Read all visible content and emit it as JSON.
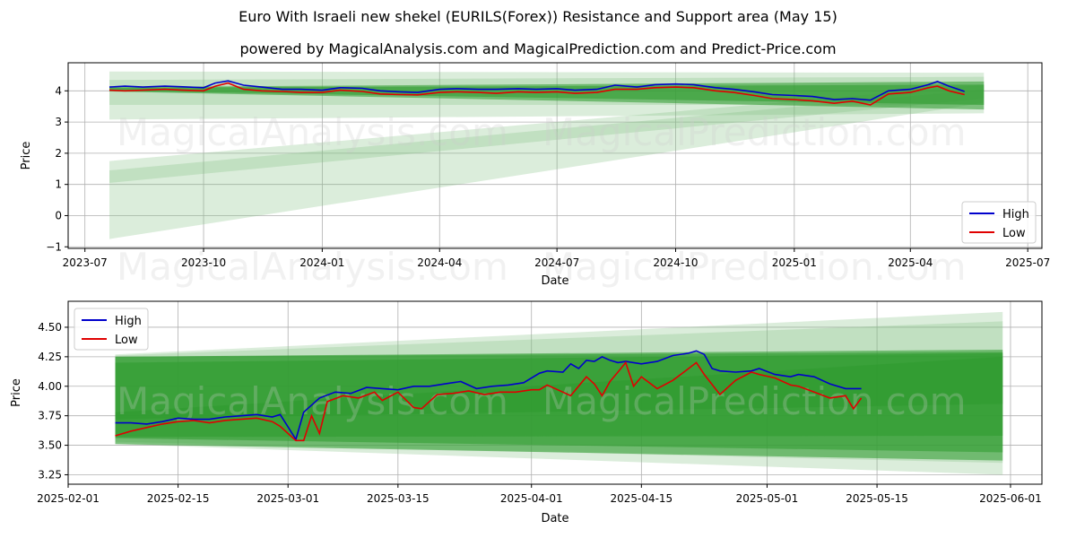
{
  "title": "Euro With Israeli new shekel (EURILS(Forex)) Resistance and Support area (May 15)",
  "subtitle": "powered by MagicalAnalysis.com and MagicalPrediction.com and Predict-Price.com",
  "watermarks": [
    "MagicalAnalysis.com",
    "MagicalPrediction.com"
  ],
  "colors": {
    "high": "#0000cc",
    "low": "#e00000",
    "band_dark": "#2e9a2e",
    "band_light": "#7fbf7f",
    "grid": "#b0b0b0"
  },
  "chart_data": [
    {
      "type": "line",
      "xlabel": "Date",
      "ylabel": "Price",
      "xlim": [
        "2023-06-18",
        "2025-07-12"
      ],
      "ylim": [
        -1.05,
        4.9
      ],
      "xticks": [
        "2023-07",
        "2023-10",
        "2024-01",
        "2024-04",
        "2024-07",
        "2024-10",
        "2025-01",
        "2025-04",
        "2025-07"
      ],
      "yticks": [
        -1,
        0,
        1,
        2,
        3,
        4
      ],
      "legend": [
        "High",
        "Low"
      ],
      "legend_position": "lower-right",
      "grid": true,
      "bands": [
        {
          "x": [
            "2023-07-20",
            "2025-05-28"
          ],
          "top": [
            4.62,
            4.58
          ],
          "bottom": [
            3.08,
            3.28
          ],
          "shade": "light"
        },
        {
          "x": [
            "2023-07-20",
            "2025-05-28"
          ],
          "top": [
            4.35,
            4.45
          ],
          "bottom": [
            3.55,
            3.55
          ],
          "shade": "light"
        },
        {
          "x": [
            "2023-07-20",
            "2025-05-28"
          ],
          "top": [
            1.75,
            4.2
          ],
          "bottom": [
            -0.75,
            3.62
          ],
          "shade": "light"
        },
        {
          "x": [
            "2023-07-20",
            "2025-05-28"
          ],
          "top": [
            1.45,
            4.05
          ],
          "bottom": [
            1.05,
            3.75
          ],
          "shade": "light"
        },
        {
          "x": [
            "2023-07-20",
            "2025-05-28"
          ],
          "top": [
            4.12,
            4.3
          ],
          "bottom": [
            3.98,
            3.4
          ],
          "shade": "dark"
        },
        {
          "x": [
            "2023-07-20",
            "2025-05-28"
          ],
          "top": [
            4.1,
            4.2
          ],
          "bottom": [
            4.0,
            3.55
          ],
          "shade": "dark"
        }
      ],
      "series": [
        {
          "name": "High",
          "x": [
            "2023-07-20",
            "2023-08-01",
            "2023-08-15",
            "2023-09-01",
            "2023-09-15",
            "2023-10-01",
            "2023-10-10",
            "2023-10-20",
            "2023-11-01",
            "2023-11-15",
            "2023-12-01",
            "2023-12-15",
            "2024-01-01",
            "2024-01-15",
            "2024-02-01",
            "2024-02-15",
            "2024-03-01",
            "2024-03-15",
            "2024-04-01",
            "2024-04-15",
            "2024-05-01",
            "2024-05-15",
            "2024-06-01",
            "2024-06-15",
            "2024-07-01",
            "2024-07-15",
            "2024-08-01",
            "2024-08-15",
            "2024-09-01",
            "2024-09-15",
            "2024-10-01",
            "2024-10-15",
            "2024-11-01",
            "2024-11-15",
            "2024-12-01",
            "2024-12-15",
            "2025-01-01",
            "2025-01-15",
            "2025-02-01",
            "2025-02-15",
            "2025-03-01",
            "2025-03-15",
            "2025-04-01",
            "2025-04-15",
            "2025-04-22",
            "2025-05-01",
            "2025-05-13"
          ],
          "values": [
            4.12,
            4.15,
            4.12,
            4.15,
            4.13,
            4.1,
            4.25,
            4.32,
            4.18,
            4.12,
            4.05,
            4.05,
            4.02,
            4.1,
            4.08,
            4.0,
            3.97,
            3.95,
            4.05,
            4.07,
            4.05,
            4.05,
            4.07,
            4.05,
            4.07,
            4.02,
            4.05,
            4.18,
            4.12,
            4.2,
            4.22,
            4.2,
            4.1,
            4.05,
            3.97,
            3.88,
            3.85,
            3.82,
            3.72,
            3.75,
            3.7,
            4.0,
            4.05,
            4.2,
            4.3,
            4.15,
            3.98
          ]
        },
        {
          "name": "Low",
          "x": [
            "2023-07-20",
            "2023-08-01",
            "2023-08-15",
            "2023-09-01",
            "2023-09-15",
            "2023-10-01",
            "2023-10-10",
            "2023-10-20",
            "2023-11-01",
            "2023-11-15",
            "2023-12-01",
            "2023-12-15",
            "2024-01-01",
            "2024-01-15",
            "2024-02-01",
            "2024-02-15",
            "2024-03-01",
            "2024-03-15",
            "2024-04-01",
            "2024-04-15",
            "2024-05-01",
            "2024-05-15",
            "2024-06-01",
            "2024-06-15",
            "2024-07-01",
            "2024-07-15",
            "2024-08-01",
            "2024-08-15",
            "2024-09-01",
            "2024-09-15",
            "2024-10-01",
            "2024-10-15",
            "2024-11-01",
            "2024-11-15",
            "2024-12-01",
            "2024-12-15",
            "2025-01-01",
            "2025-01-15",
            "2025-02-01",
            "2025-02-15",
            "2025-03-01",
            "2025-03-15",
            "2025-04-01",
            "2025-04-15",
            "2025-04-22",
            "2025-05-01",
            "2025-05-13"
          ],
          "values": [
            4.02,
            4.0,
            4.02,
            4.05,
            4.02,
            4.0,
            4.15,
            4.25,
            4.05,
            4.0,
            3.98,
            3.95,
            3.95,
            4.02,
            3.98,
            3.9,
            3.88,
            3.87,
            3.95,
            3.97,
            3.95,
            3.92,
            3.97,
            3.95,
            3.97,
            3.92,
            3.95,
            4.05,
            4.05,
            4.1,
            4.12,
            4.1,
            4.0,
            3.95,
            3.85,
            3.75,
            3.72,
            3.68,
            3.6,
            3.67,
            3.55,
            3.9,
            3.95,
            4.1,
            4.15,
            4.0,
            3.88
          ]
        }
      ]
    },
    {
      "type": "line",
      "xlabel": "Date",
      "ylabel": "Price",
      "xlim": [
        "2025-02-01",
        "2025-06-05"
      ],
      "ylim": [
        3.17,
        4.72
      ],
      "xticks": [
        "2025-02-01",
        "2025-02-15",
        "2025-03-01",
        "2025-03-15",
        "2025-04-01",
        "2025-04-15",
        "2025-05-01",
        "2025-05-15",
        "2025-06-01"
      ],
      "yticks": [
        3.25,
        3.5,
        3.75,
        4.0,
        4.25,
        4.5
      ],
      "legend": [
        "High",
        "Low"
      ],
      "legend_position": "upper-left",
      "grid": true,
      "bands": [
        {
          "x": [
            "2025-02-07",
            "2025-05-31"
          ],
          "top": [
            4.27,
            4.63
          ],
          "bottom": [
            3.51,
            3.25
          ],
          "shade": "light"
        },
        {
          "x": [
            "2025-02-07",
            "2025-05-31"
          ],
          "top": [
            4.26,
            4.55
          ],
          "bottom": [
            3.53,
            3.35
          ],
          "shade": "light"
        },
        {
          "x": [
            "2025-02-07",
            "2025-05-31"
          ],
          "top": [
            4.25,
            4.31
          ],
          "bottom": [
            3.51,
            3.37
          ],
          "shade": "dark"
        },
        {
          "x": [
            "2025-02-07",
            "2025-05-31"
          ],
          "top": [
            4.25,
            4.29
          ],
          "bottom": [
            3.56,
            3.44
          ],
          "shade": "dark"
        },
        {
          "x": [
            "2025-02-07",
            "2025-05-31"
          ],
          "top": [
            4.2,
            4.28
          ],
          "bottom": [
            3.57,
            3.58
          ],
          "shade": "dark"
        },
        {
          "x": [
            "2025-02-07",
            "2025-05-31"
          ],
          "top": [
            3.78,
            4.25
          ],
          "bottom": [
            3.72,
            3.85
          ],
          "shade": "dark"
        }
      ],
      "series": [
        {
          "name": "High",
          "x": [
            "2025-02-07",
            "2025-02-09",
            "2025-02-11",
            "2025-02-13",
            "2025-02-15",
            "2025-02-17",
            "2025-02-19",
            "2025-02-21",
            "2025-02-23",
            "2025-02-25",
            "2025-02-27",
            "2025-02-28",
            "2025-03-02",
            "2025-03-03",
            "2025-03-05",
            "2025-03-07",
            "2025-03-09",
            "2025-03-11",
            "2025-03-13",
            "2025-03-15",
            "2025-03-17",
            "2025-03-19",
            "2025-03-21",
            "2025-03-23",
            "2025-03-25",
            "2025-03-27",
            "2025-03-29",
            "2025-03-31",
            "2025-04-02",
            "2025-04-03",
            "2025-04-05",
            "2025-04-06",
            "2025-04-07",
            "2025-04-08",
            "2025-04-09",
            "2025-04-10",
            "2025-04-11",
            "2025-04-12",
            "2025-04-13",
            "2025-04-15",
            "2025-04-17",
            "2025-04-19",
            "2025-04-21",
            "2025-04-22",
            "2025-04-23",
            "2025-04-24",
            "2025-04-25",
            "2025-04-27",
            "2025-04-29",
            "2025-04-30",
            "2025-05-02",
            "2025-05-04",
            "2025-05-05",
            "2025-05-07",
            "2025-05-09",
            "2025-05-11",
            "2025-05-13"
          ],
          "values": [
            3.69,
            3.69,
            3.68,
            3.7,
            3.73,
            3.72,
            3.72,
            3.74,
            3.75,
            3.76,
            3.74,
            3.76,
            3.55,
            3.78,
            3.9,
            3.95,
            3.94,
            3.99,
            3.98,
            3.97,
            4.0,
            4.0,
            4.02,
            4.04,
            3.98,
            4.0,
            4.01,
            4.03,
            4.11,
            4.13,
            4.12,
            4.19,
            4.15,
            4.22,
            4.21,
            4.25,
            4.22,
            4.2,
            4.21,
            4.19,
            4.21,
            4.26,
            4.28,
            4.3,
            4.27,
            4.15,
            4.13,
            4.12,
            4.13,
            4.15,
            4.1,
            4.08,
            4.1,
            4.08,
            4.02,
            3.98,
            3.98
          ]
        },
        {
          "name": "Low",
          "x": [
            "2025-02-07",
            "2025-02-09",
            "2025-02-11",
            "2025-02-13",
            "2025-02-15",
            "2025-02-17",
            "2025-02-19",
            "2025-02-21",
            "2025-02-23",
            "2025-02-25",
            "2025-02-27",
            "2025-02-28",
            "2025-03-02",
            "2025-03-03",
            "2025-03-04",
            "2025-03-05",
            "2025-03-06",
            "2025-03-08",
            "2025-03-10",
            "2025-03-12",
            "2025-03-13",
            "2025-03-15",
            "2025-03-17",
            "2025-03-18",
            "2025-03-20",
            "2025-03-22",
            "2025-03-24",
            "2025-03-26",
            "2025-03-28",
            "2025-03-30",
            "2025-04-01",
            "2025-04-02",
            "2025-04-03",
            "2025-04-05",
            "2025-04-06",
            "2025-04-08",
            "2025-04-09",
            "2025-04-10",
            "2025-04-11",
            "2025-04-12",
            "2025-04-13",
            "2025-04-14",
            "2025-04-15",
            "2025-04-17",
            "2025-04-19",
            "2025-04-21",
            "2025-04-22",
            "2025-04-23",
            "2025-04-25",
            "2025-04-27",
            "2025-04-29",
            "2025-04-30",
            "2025-05-02",
            "2025-05-04",
            "2025-05-05",
            "2025-05-07",
            "2025-05-09",
            "2025-05-11",
            "2025-05-12",
            "2025-05-13"
          ],
          "values": [
            3.58,
            3.62,
            3.65,
            3.68,
            3.7,
            3.71,
            3.69,
            3.71,
            3.72,
            3.73,
            3.7,
            3.66,
            3.54,
            3.54,
            3.75,
            3.6,
            3.87,
            3.92,
            3.9,
            3.95,
            3.88,
            3.95,
            3.82,
            3.81,
            3.93,
            3.94,
            3.96,
            3.93,
            3.95,
            3.95,
            3.97,
            3.97,
            4.01,
            3.95,
            3.92,
            4.08,
            4.02,
            3.92,
            4.04,
            4.12,
            4.2,
            4.0,
            4.08,
            3.98,
            4.05,
            4.15,
            4.2,
            4.1,
            3.93,
            4.05,
            4.12,
            4.1,
            4.07,
            4.01,
            4.0,
            3.95,
            3.9,
            3.92,
            3.81,
            3.9
          ]
        }
      ]
    }
  ]
}
